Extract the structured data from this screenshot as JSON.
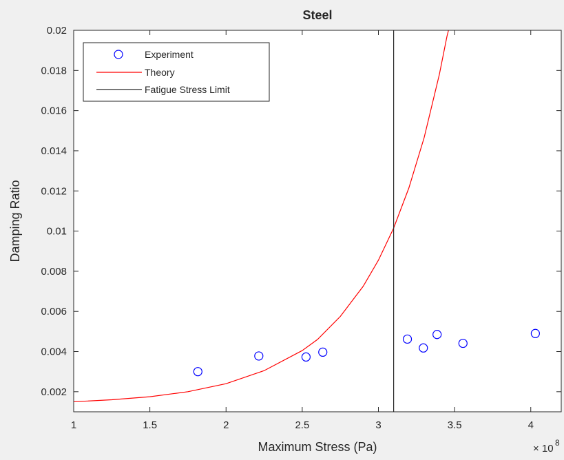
{
  "chart_data": {
    "type": "scatter",
    "title": "Steel",
    "xlabel": "Maximum Stress (Pa)",
    "ylabel": "Damping Ratio",
    "x_exponent_base": "× 10",
    "x_exponent_power": "8",
    "xlim": [
      1,
      4.2
    ],
    "ylim": [
      0.001,
      0.02
    ],
    "x_ticks": [
      1,
      1.5,
      2,
      2.5,
      3,
      3.5,
      4
    ],
    "x_tick_labels": [
      "1",
      "1.5",
      "2",
      "2.5",
      "3",
      "3.5",
      "4"
    ],
    "y_ticks": [
      0.002,
      0.004,
      0.006,
      0.008,
      0.01,
      0.012,
      0.014,
      0.016,
      0.018,
      0.02
    ],
    "y_tick_labels": [
      "0.002",
      "0.004",
      "0.006",
      "0.008",
      "0.01",
      "0.012",
      "0.014",
      "0.016",
      "0.018",
      "0.02"
    ],
    "grid": false,
    "legend_position": "top-left",
    "series": [
      {
        "name": "Experiment",
        "kind": "markers",
        "color": "#0000ff",
        "points": [
          {
            "x": 1.815,
            "y": 0.003
          },
          {
            "x": 2.215,
            "y": 0.00378
          },
          {
            "x": 2.525,
            "y": 0.00373
          },
          {
            "x": 2.635,
            "y": 0.00397
          },
          {
            "x": 3.19,
            "y": 0.00462
          },
          {
            "x": 3.295,
            "y": 0.00418
          },
          {
            "x": 3.385,
            "y": 0.00485
          },
          {
            "x": 3.555,
            "y": 0.00441
          },
          {
            "x": 4.03,
            "y": 0.0049
          }
        ]
      },
      {
        "name": "Theory",
        "kind": "line",
        "color": "#ff0000",
        "points": [
          {
            "x": 1.0,
            "y": 0.0015
          },
          {
            "x": 1.25,
            "y": 0.0016
          },
          {
            "x": 1.5,
            "y": 0.00175
          },
          {
            "x": 1.75,
            "y": 0.002
          },
          {
            "x": 2.0,
            "y": 0.0024
          },
          {
            "x": 2.25,
            "y": 0.00305
          },
          {
            "x": 2.5,
            "y": 0.00405
          },
          {
            "x": 2.6,
            "y": 0.0046
          },
          {
            "x": 2.75,
            "y": 0.00575
          },
          {
            "x": 2.9,
            "y": 0.00725
          },
          {
            "x": 3.0,
            "y": 0.00855
          },
          {
            "x": 3.1,
            "y": 0.01015
          },
          {
            "x": 3.2,
            "y": 0.01215
          },
          {
            "x": 3.3,
            "y": 0.01465
          },
          {
            "x": 3.4,
            "y": 0.0178
          },
          {
            "x": 3.45,
            "y": 0.0197
          },
          {
            "x": 3.46,
            "y": 0.02
          }
        ]
      },
      {
        "name": "Fatigue Stress Limit",
        "kind": "vline",
        "color": "#262626",
        "x": 3.1
      }
    ]
  }
}
